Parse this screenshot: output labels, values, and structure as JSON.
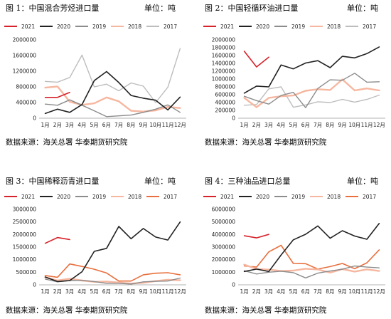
{
  "charts": [
    {
      "title": "图 1：中国混合芳烃进口量",
      "unit": "单位：吨",
      "source": "数据来源：海关总署 华泰期货研究院",
      "chart_data": {
        "type": "line",
        "categories": [
          "1月",
          "2月",
          "3月",
          "4月",
          "5月",
          "6月",
          "7月",
          "8月",
          "9月",
          "10月",
          "11月",
          "12月"
        ],
        "y_ticks": [
          "0",
          "400000",
          "800000",
          "1200000",
          "1600000",
          "2000000"
        ],
        "ylim": [
          0,
          2000000
        ],
        "legend_position": "top",
        "grid": false,
        "series": [
          {
            "name": "2021",
            "color": "#d6222a",
            "width": 1.6,
            "values": [
              530000,
              530000,
              660000,
              null,
              null,
              null,
              null,
              null,
              null,
              null,
              null,
              null
            ]
          },
          {
            "name": "2020",
            "color": "#222222",
            "width": 1.6,
            "values": [
              120000,
              230000,
              150000,
              350000,
              960000,
              1190000,
              910000,
              580000,
              510000,
              460000,
              210000,
              540000
            ]
          },
          {
            "name": "2019",
            "color": "#8c8c8c",
            "width": 1.4,
            "values": [
              360000,
              330000,
              470000,
              330000,
              190000,
              40000,
              60000,
              80000,
              150000,
              230000,
              340000,
              150000
            ]
          },
          {
            "name": "2018",
            "color": "#f6b7a0",
            "width": 2.4,
            "values": [
              780000,
              810000,
              420000,
              340000,
              380000,
              530000,
              430000,
              190000,
              170000,
              200000,
              290000,
              260000
            ]
          },
          {
            "name": "2017",
            "color": "#bdbdbd",
            "width": 1.4,
            "values": [
              940000,
              920000,
              1040000,
              1610000,
              800000,
              870000,
              700000,
              900000,
              820000,
              400000,
              790000,
              1780000
            ]
          }
        ]
      }
    },
    {
      "title": "图 2：中国轻循环油进口量",
      "unit": "单位：吨",
      "source": "数据来源：海关总署 华泰期货研究院",
      "chart_data": {
        "type": "line",
        "categories": [
          "1月",
          "2月",
          "3月",
          "4月",
          "5月",
          "6月",
          "7月",
          "8月",
          "9月",
          "10月",
          "11月",
          "12月"
        ],
        "y_ticks": [
          "0",
          "200000",
          "400000",
          "600000",
          "800000",
          "1000000",
          "1200000",
          "1400000",
          "1600000",
          "1800000",
          "2000000"
        ],
        "ylim": [
          0,
          2000000
        ],
        "legend_position": "top",
        "grid": false,
        "series": [
          {
            "name": "2021",
            "color": "#d6222a",
            "width": 1.6,
            "values": [
              1710000,
              1310000,
              1560000,
              null,
              null,
              null,
              null,
              null,
              null,
              null,
              null,
              null
            ]
          },
          {
            "name": "2020",
            "color": "#222222",
            "width": 1.6,
            "values": [
              640000,
              820000,
              800000,
              1360000,
              1260000,
              1410000,
              1470000,
              1290000,
              1580000,
              1540000,
              1650000,
              1820000
            ]
          },
          {
            "name": "2019",
            "color": "#8c8c8c",
            "width": 1.4,
            "values": [
              560000,
              450000,
              360000,
              580000,
              660000,
              270000,
              760000,
              980000,
              970000,
              1150000,
              920000,
              930000
            ]
          },
          {
            "name": "2018",
            "color": "#f6b7a0",
            "width": 2.4,
            "values": [
              520000,
              280000,
              520000,
              560000,
              580000,
              700000,
              740000,
              720000,
              990000,
              710000,
              760000,
              710000
            ]
          },
          {
            "name": "2017",
            "color": "#bdbdbd",
            "width": 1.4,
            "values": [
              330000,
              350000,
              750000,
              800000,
              280000,
              340000,
              420000,
              400000,
              480000,
              410000,
              480000,
              590000
            ]
          }
        ]
      }
    },
    {
      "title": "图 3：中国稀释沥青进口量",
      "unit": "单位：吨",
      "source": "数据来源：海关总署 华泰期货研究院",
      "chart_data": {
        "type": "line",
        "categories": [
          "1月",
          "2月",
          "3月",
          "4月",
          "5月",
          "6月",
          "7月",
          "8月",
          "9月",
          "10月",
          "11月",
          "12月"
        ],
        "y_ticks": [
          "0",
          "500000",
          "1000000",
          "1500000",
          "2000000",
          "2500000",
          "3000000"
        ],
        "ylim": [
          0,
          3000000
        ],
        "legend_position": "top",
        "grid": false,
        "series": [
          {
            "name": "2021",
            "color": "#d6222a",
            "width": 1.6,
            "values": [
              1650000,
              1880000,
              1800000,
              null,
              null,
              null,
              null,
              null,
              null,
              null,
              null,
              null
            ]
          },
          {
            "name": "2020",
            "color": "#222222",
            "width": 1.6,
            "values": [
              310000,
              130000,
              170000,
              520000,
              1330000,
              1450000,
              2320000,
              1830000,
              2240000,
              1900000,
              1780000,
              2500000
            ]
          },
          {
            "name": "2019",
            "color": "#8c8c8c",
            "width": 1.4,
            "values": [
              230000,
              120000,
              170000,
              180000,
              130000,
              60000,
              60000,
              30000,
              120000,
              140000,
              150000,
              270000
            ]
          },
          {
            "name": "2018",
            "color": "#f6b7a0",
            "width": 2.4,
            "values": [
              300000,
              170000,
              240000,
              170000,
              120000,
              130000,
              90000,
              50000,
              80000,
              150000,
              200000,
              180000
            ]
          },
          {
            "name": "2017",
            "color": "#e8703e",
            "width": 1.6,
            "values": [
              370000,
              300000,
              830000,
              730000,
              620000,
              470000,
              150000,
              150000,
              400000,
              460000,
              480000,
              400000
            ]
          }
        ]
      }
    },
    {
      "title": "图 4：三种油品进口总量",
      "unit": "单位：吨",
      "source": "数据来源：海关总署 华泰期货研究院",
      "chart_data": {
        "type": "line",
        "categories": [
          "1月",
          "2月",
          "3月",
          "4月",
          "5月",
          "6月",
          "7月",
          "8月",
          "9月",
          "10月",
          "11月",
          "12月"
        ],
        "y_ticks": [
          "0",
          "1000000",
          "2000000",
          "3000000",
          "4000000",
          "5000000",
          "6000000"
        ],
        "ylim": [
          0,
          6000000
        ],
        "legend_position": "top",
        "grid": false,
        "series": [
          {
            "name": "2021",
            "color": "#d6222a",
            "width": 1.6,
            "values": [
              3900000,
              3730000,
              4010000,
              null,
              null,
              null,
              null,
              null,
              null,
              null,
              null,
              null
            ]
          },
          {
            "name": "2020",
            "color": "#222222",
            "width": 1.6,
            "values": [
              1060000,
              1250000,
              1060000,
              2370000,
              3580000,
              4020000,
              4680000,
              3700000,
              4300000,
              3880000,
              3620000,
              4880000
            ]
          },
          {
            "name": "2019",
            "color": "#8c8c8c",
            "width": 1.4,
            "values": [
              1120000,
              860000,
              1000000,
              1080000,
              970000,
              550000,
              930000,
              1100000,
              1240000,
              1500000,
              1410000,
              1350000
            ]
          },
          {
            "name": "2018",
            "color": "#f6b7a0",
            "width": 2.4,
            "values": [
              1610000,
              1250000,
              1210000,
              1100000,
              1130000,
              1280000,
              1220000,
              970000,
              1250000,
              1050000,
              1230000,
              1100000
            ]
          },
          {
            "name": "2017",
            "color": "#e8703e",
            "width": 1.6,
            "values": [
              1500000,
              1410000,
              2620000,
              3140000,
              1700000,
              1680000,
              1250000,
              1450000,
              1700000,
              1280000,
              1750000,
              2780000
            ]
          }
        ]
      }
    }
  ]
}
